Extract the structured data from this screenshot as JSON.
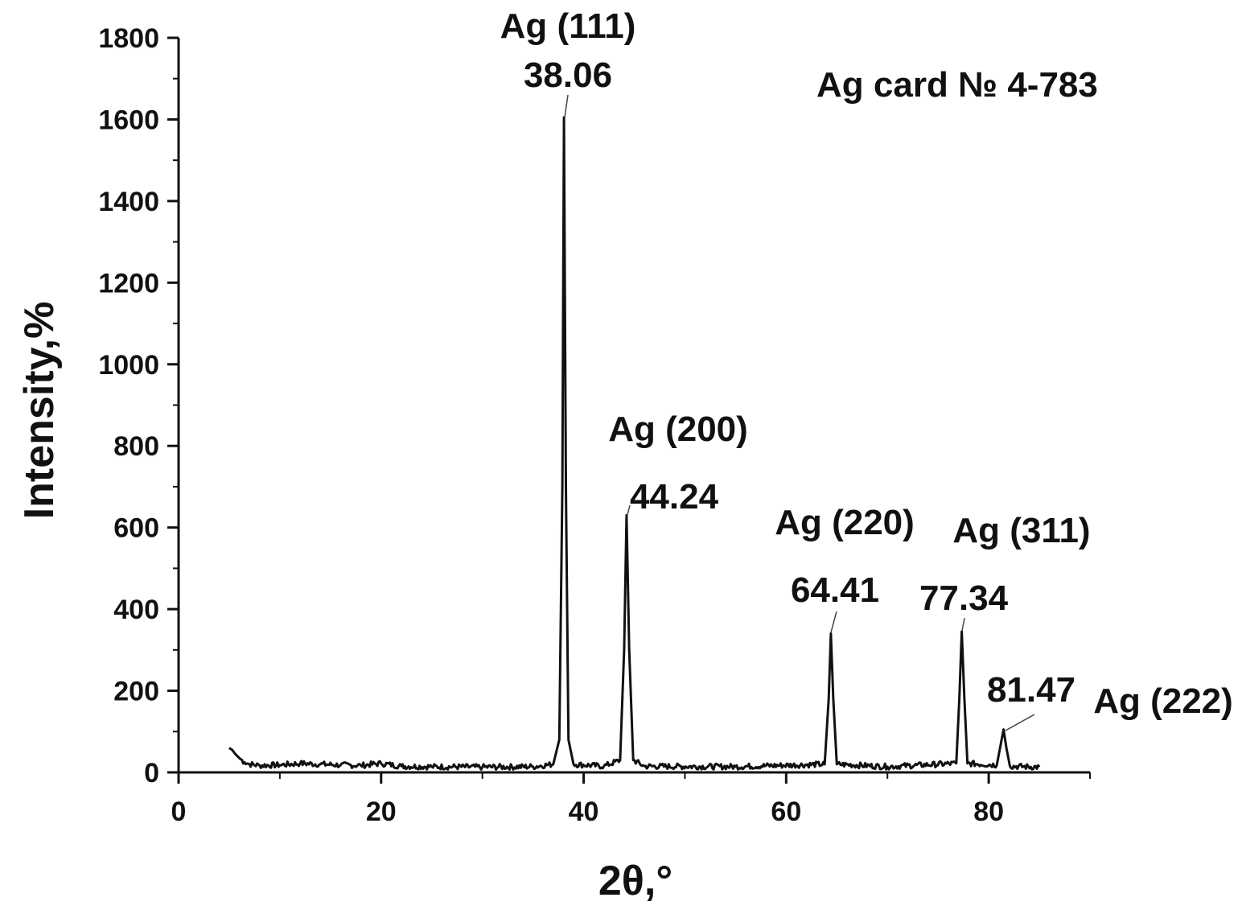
{
  "chart_data": {
    "type": "line",
    "title": "",
    "xlabel": "2θ,°",
    "ylabel": "Intensity,%",
    "xlim": [
      0,
      90
    ],
    "ylim": [
      0,
      1800
    ],
    "xticks": [
      0,
      20,
      40,
      60,
      80
    ],
    "yticks": [
      0,
      200,
      400,
      600,
      800,
      1000,
      1200,
      1400,
      1600,
      1800
    ],
    "grid": false,
    "card_label": "Ag  card № 4-783",
    "baseline": 15,
    "series": [
      {
        "values_description_free": true,
        "points": [
          [
            5.0,
            60
          ],
          [
            5.3,
            55
          ],
          [
            5.6,
            45
          ],
          [
            6.0,
            35
          ],
          [
            6.5,
            25
          ],
          [
            7.0,
            20
          ],
          [
            8.0,
            17
          ],
          [
            10.0,
            18
          ],
          [
            12.0,
            22
          ],
          [
            14.0,
            20
          ],
          [
            16.0,
            18
          ],
          [
            18.0,
            17
          ],
          [
            20.0,
            22
          ],
          [
            22.0,
            15
          ],
          [
            25.0,
            14
          ],
          [
            30.0,
            13
          ],
          [
            35.0,
            14
          ],
          [
            37.0,
            20
          ],
          [
            37.6,
            80
          ],
          [
            37.9,
            700
          ],
          [
            38.06,
            1605
          ],
          [
            38.25,
            700
          ],
          [
            38.5,
            80
          ],
          [
            39.0,
            20
          ],
          [
            42.0,
            15
          ],
          [
            43.6,
            30
          ],
          [
            44.0,
            300
          ],
          [
            44.24,
            630
          ],
          [
            44.5,
            300
          ],
          [
            44.9,
            30
          ],
          [
            46.0,
            15
          ],
          [
            55.0,
            14
          ],
          [
            63.8,
            20
          ],
          [
            64.2,
            180
          ],
          [
            64.41,
            340
          ],
          [
            64.65,
            180
          ],
          [
            65.0,
            20
          ],
          [
            70.0,
            14
          ],
          [
            76.8,
            22
          ],
          [
            77.1,
            180
          ],
          [
            77.34,
            345
          ],
          [
            77.6,
            180
          ],
          [
            77.9,
            22
          ],
          [
            80.8,
            18
          ],
          [
            81.2,
            70
          ],
          [
            81.47,
            105
          ],
          [
            81.75,
            60
          ],
          [
            82.1,
            15
          ],
          [
            85.0,
            13
          ]
        ]
      }
    ],
    "annotations": [
      {
        "hkl": "Ag (111)",
        "angle": "38.06",
        "x": 38.06,
        "y": 1605
      },
      {
        "hkl": "Ag (200)",
        "angle": "44.24",
        "x": 44.24,
        "y": 630
      },
      {
        "hkl": "Ag (220)",
        "angle": "64.41",
        "x": 64.41,
        "y": 340
      },
      {
        "hkl": "Ag (311)",
        "angle": "77.34",
        "x": 77.34,
        "y": 345
      },
      {
        "hkl": "Ag (222)",
        "angle": "81.47",
        "x": 81.47,
        "y": 105
      }
    ]
  }
}
